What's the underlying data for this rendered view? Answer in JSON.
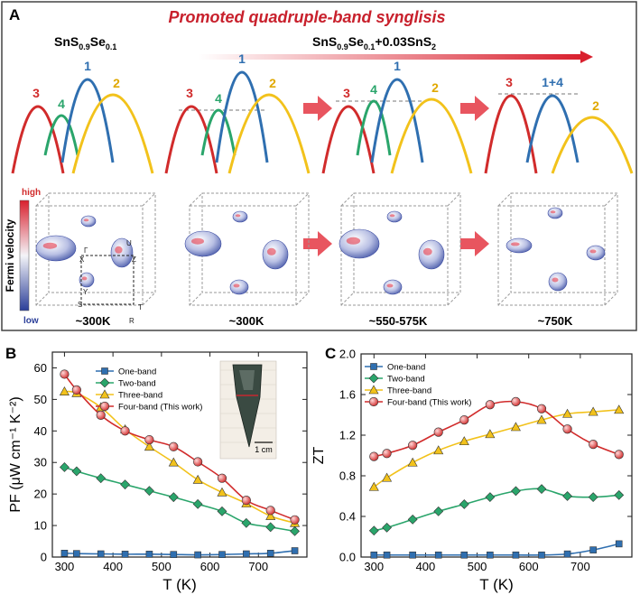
{
  "panel_a": {
    "letter": "A",
    "title": "Promoted quadruple-band synglisis",
    "left_formula": {
      "base": "SnS",
      "sub1": "0.9",
      "mid": "Se",
      "sub2": "0.1"
    },
    "right_formula": {
      "base": "SnS",
      "sub1": "0.9",
      "mid": "Se",
      "sub2": "0.1",
      "tail": "+0.03SnS",
      "sub3": "2"
    },
    "band_labels": [
      "1",
      "2",
      "3",
      "4",
      "1+4"
    ],
    "fermi_label": "Fermi velocity",
    "scale_high": "high",
    "scale_low": "low",
    "temperatures": [
      "~300K",
      "~300K",
      "~550-575K",
      "~750K"
    ],
    "bz_points": [
      "X",
      "Z",
      "Γ",
      "Y",
      "S",
      "T",
      "R",
      "U"
    ],
    "colors": {
      "band1": "#2f6fb0",
      "band2": "#f2c21b",
      "band3": "#d12b2b",
      "band4": "#2aa56b",
      "title": "#c8202c",
      "arrow": "#e8555f"
    }
  },
  "chart_data": [
    {
      "panel": "B",
      "type": "line",
      "xlabel": "T (K)",
      "ylabel": "PF (μW cm⁻¹ K⁻²)",
      "x": [
        300,
        325,
        375,
        425,
        475,
        525,
        575,
        625,
        675,
        725,
        775
      ],
      "xlim": [
        275,
        800
      ],
      "ylim": [
        0,
        65
      ],
      "xticks": [
        300,
        400,
        500,
        600,
        700
      ],
      "yticks": [
        0,
        10,
        20,
        30,
        40,
        50,
        60
      ],
      "legend": "top-center",
      "inset_label": "1 cm",
      "series": [
        {
          "name": "One-band",
          "marker": "square",
          "color": "#2f6fb0",
          "values": [
            1.2,
            1.1,
            1.0,
            0.9,
            0.9,
            0.8,
            0.7,
            0.8,
            1.0,
            1.2,
            2.0
          ]
        },
        {
          "name": "Two-band",
          "marker": "diamond",
          "color": "#2aa56b",
          "values": [
            28.5,
            27.2,
            25.0,
            23.0,
            21.0,
            19.0,
            16.8,
            14.5,
            10.8,
            9.5,
            8.2
          ]
        },
        {
          "name": "Three-band",
          "marker": "triangle",
          "color": "#f2c21b",
          "values": [
            52.5,
            52.0,
            47.5,
            40.5,
            35.0,
            30.0,
            24.5,
            20.5,
            17.0,
            13.0,
            10.8
          ]
        },
        {
          "name": "Four-band (This work)",
          "marker": "circle",
          "color": "#d12b2b",
          "values": [
            58.0,
            53.0,
            45.0,
            40.0,
            37.2,
            35.0,
            30.2,
            25.0,
            18.0,
            14.8,
            11.8
          ]
        }
      ]
    },
    {
      "panel": "C",
      "type": "line",
      "xlabel": "T (K)",
      "ylabel": "ZT",
      "x": [
        300,
        325,
        375,
        425,
        475,
        525,
        575,
        625,
        675,
        725,
        775
      ],
      "xlim": [
        275,
        800
      ],
      "ylim": [
        0,
        2.0
      ],
      "xticks": [
        300,
        400,
        500,
        600,
        700
      ],
      "yticks": [
        0.0,
        0.4,
        0.8,
        1.2,
        1.6,
        2.0
      ],
      "legend": "top-left",
      "series": [
        {
          "name": "One-band",
          "marker": "square",
          "color": "#2f6fb0",
          "values": [
            0.02,
            0.02,
            0.02,
            0.02,
            0.02,
            0.02,
            0.02,
            0.02,
            0.03,
            0.07,
            0.13
          ]
        },
        {
          "name": "Two-band",
          "marker": "diamond",
          "color": "#2aa56b",
          "values": [
            0.26,
            0.29,
            0.37,
            0.45,
            0.52,
            0.59,
            0.65,
            0.67,
            0.6,
            0.59,
            0.61
          ]
        },
        {
          "name": "Three-band",
          "marker": "triangle",
          "color": "#f2c21b",
          "values": [
            0.69,
            0.78,
            0.93,
            1.05,
            1.14,
            1.21,
            1.28,
            1.35,
            1.41,
            1.43,
            1.45
          ]
        },
        {
          "name": "Four-band (This work)",
          "marker": "circle",
          "color": "#d12b2b",
          "values": [
            0.99,
            1.02,
            1.1,
            1.23,
            1.35,
            1.5,
            1.53,
            1.46,
            1.26,
            1.11,
            1.01
          ]
        }
      ]
    }
  ],
  "panel_b_letter": "B",
  "panel_c_letter": "C"
}
